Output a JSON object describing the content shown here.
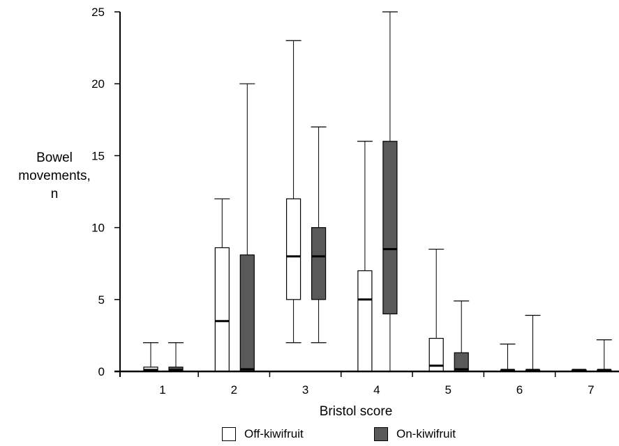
{
  "chart_data": {
    "type": "boxplot",
    "xlabel": "Bristol score",
    "ylabel_lines": [
      "Bowel",
      "movements,",
      "n"
    ],
    "categories": [
      "1",
      "2",
      "3",
      "4",
      "5",
      "6",
      "7"
    ],
    "ylim": [
      0,
      25
    ],
    "yticks": [
      0,
      5,
      10,
      15,
      20,
      25
    ],
    "grid": false,
    "legend_position": "bottom",
    "series": [
      {
        "name": "Off-kiwifruit",
        "color": "#ffffff",
        "boxes": [
          {
            "min": 0,
            "q1": 0,
            "median": 0.1,
            "q3": 0.3,
            "max": 2
          },
          {
            "min": 0,
            "q1": 0,
            "median": 3.5,
            "q3": 8.6,
            "max": 12
          },
          {
            "min": 2,
            "q1": 5,
            "median": 8,
            "q3": 12,
            "max": 23
          },
          {
            "min": 0,
            "q1": 0,
            "median": 5,
            "q3": 7,
            "max": 16
          },
          {
            "min": 0,
            "q1": 0,
            "median": 0.4,
            "q3": 2.3,
            "max": 8.5
          },
          {
            "min": 0,
            "q1": 0,
            "median": 0.1,
            "q3": 0.1,
            "max": 1.9
          },
          {
            "min": 0,
            "q1": 0,
            "median": 0.1,
            "q3": 0.1,
            "max": 0.1
          }
        ]
      },
      {
        "name": "On-kiwifruit",
        "color": "#595959",
        "boxes": [
          {
            "min": 0,
            "q1": 0,
            "median": 0.1,
            "q3": 0.3,
            "max": 2
          },
          {
            "min": 0,
            "q1": 0,
            "median": 0.15,
            "q3": 8.1,
            "max": 20
          },
          {
            "min": 2,
            "q1": 5,
            "median": 8,
            "q3": 10,
            "max": 17
          },
          {
            "min": 0,
            "q1": 4,
            "median": 8.5,
            "q3": 16,
            "max": 25
          },
          {
            "min": 0,
            "q1": 0,
            "median": 0.15,
            "q3": 1.3,
            "max": 4.9
          },
          {
            "min": 0,
            "q1": 0,
            "median": 0.1,
            "q3": 0.1,
            "max": 3.9
          },
          {
            "min": 0,
            "q1": 0,
            "median": 0.1,
            "q3": 0.1,
            "max": 2.2
          }
        ]
      }
    ]
  }
}
